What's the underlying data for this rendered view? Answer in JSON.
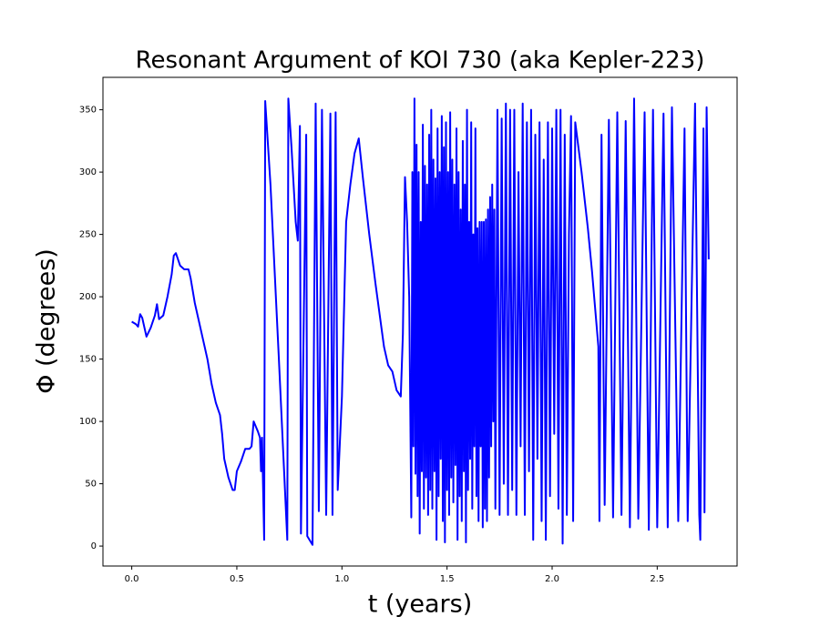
{
  "chart_data": {
    "type": "line",
    "title": "Resonant Argument of KOI 730 (aka Kepler-223)",
    "x_label": "t (years)",
    "y_label": "Φ (degrees)",
    "color": "#0000ff",
    "xlim": [
      -0.137,
      2.88
    ],
    "ylim": [
      -16,
      376
    ],
    "xticks": [
      {
        "value": 0,
        "label": "0.0"
      },
      0.5,
      {
        "value": 1,
        "label": "1.0"
      },
      1.5,
      {
        "value": 2,
        "label": "2.0"
      },
      2.5
    ],
    "yticks": [
      0,
      50,
      100,
      150,
      200,
      250,
      300,
      350
    ],
    "x": [
      0,
      0.02,
      0.03,
      0.04,
      0.05,
      0.07,
      0.09,
      0.11,
      0.12,
      0.13,
      0.15,
      0.17,
      0.19,
      0.2,
      0.21,
      0.23,
      0.25,
      0.27,
      0.28,
      0.3,
      0.32,
      0.34,
      0.36,
      0.38,
      0.4,
      0.42,
      0.43,
      0.44,
      0.46,
      0.48,
      0.49,
      0.5,
      0.52,
      0.54,
      0.56,
      0.57,
      0.58,
      0.6,
      0.61,
      0.615,
      0.62,
      0.63,
      0.635,
      0.66,
      0.7,
      0.74,
      0.745,
      0.76,
      0.78,
      0.79,
      0.8,
      0.805,
      0.83,
      0.835,
      0.86,
      0.875,
      0.89,
      0.905,
      0.925,
      0.945,
      0.955,
      0.97,
      0.98,
      1.0,
      1.02,
      1.04,
      1.06,
      1.08,
      1.1,
      1.13,
      1.16,
      1.2,
      1.22,
      1.24,
      1.26,
      1.28,
      1.29,
      1.3,
      1.31,
      1.32,
      1.33,
      1.335,
      1.34,
      1.345,
      1.35,
      1.355,
      1.36,
      1.365,
      1.37,
      1.375,
      1.38,
      1.385,
      1.39,
      1.395,
      1.4,
      1.405,
      1.41,
      1.415,
      1.42,
      1.425,
      1.43,
      1.435,
      1.44,
      1.445,
      1.45,
      1.455,
      1.46,
      1.465,
      1.47,
      1.475,
      1.48,
      1.485,
      1.49,
      1.495,
      1.5,
      1.505,
      1.51,
      1.515,
      1.52,
      1.525,
      1.53,
      1.535,
      1.54,
      1.545,
      1.55,
      1.555,
      1.56,
      1.565,
      1.57,
      1.575,
      1.58,
      1.585,
      1.59,
      1.595,
      1.6,
      1.605,
      1.61,
      1.615,
      1.62,
      1.625,
      1.63,
      1.635,
      1.64,
      1.645,
      1.65,
      1.655,
      1.66,
      1.665,
      1.67,
      1.675,
      1.68,
      1.685,
      1.69,
      1.695,
      1.7,
      1.705,
      1.71,
      1.715,
      1.72,
      1.725,
      1.73,
      1.74,
      1.75,
      1.76,
      1.77,
      1.78,
      1.79,
      1.8,
      1.81,
      1.82,
      1.83,
      1.84,
      1.85,
      1.86,
      1.87,
      1.88,
      1.89,
      1.9,
      1.91,
      1.92,
      1.93,
      1.94,
      1.95,
      1.96,
      1.97,
      1.98,
      1.99,
      2.0,
      2.01,
      2.02,
      2.03,
      2.04,
      2.05,
      2.06,
      2.07,
      2.08,
      2.09,
      2.1,
      2.11,
      2.14,
      2.17,
      2.19,
      2.21,
      2.22,
      2.225,
      2.235,
      2.25,
      2.27,
      2.29,
      2.31,
      2.33,
      2.35,
      2.37,
      2.39,
      2.41,
      2.44,
      2.46,
      2.48,
      2.5,
      2.53,
      2.55,
      2.57,
      2.6,
      2.63,
      2.645,
      2.68,
      2.7,
      2.705,
      2.72,
      2.725,
      2.735,
      2.745
    ],
    "values": [
      180,
      178,
      176,
      186,
      183,
      168,
      175,
      185,
      194,
      182,
      185,
      200,
      218,
      233,
      235,
      225,
      222,
      222,
      215,
      195,
      180,
      165,
      150,
      130,
      115,
      105,
      90,
      70,
      55,
      45,
      45,
      60,
      68,
      78,
      78,
      80,
      100,
      92,
      87,
      60,
      87,
      5,
      357,
      290,
      150,
      5,
      359,
      320,
      260,
      245,
      337,
      10,
      330,
      8,
      1,
      355,
      28,
      350,
      25,
      347,
      25,
      348,
      45,
      120,
      260,
      290,
      315,
      327,
      295,
      250,
      210,
      160,
      145,
      140,
      125,
      120,
      170,
      296,
      260,
      200,
      23,
      300,
      80,
      359,
      58,
      322,
      40,
      300,
      10,
      260,
      60,
      338,
      30,
      305,
      55,
      290,
      25,
      330,
      45,
      350,
      30,
      310,
      60,
      295,
      5,
      335,
      40,
      300,
      70,
      345,
      20,
      320,
      3,
      340,
      45,
      300,
      25,
      348,
      55,
      310,
      35,
      290,
      65,
      335,
      5,
      300,
      40,
      270,
      20,
      325,
      60,
      290,
      3,
      350,
      45,
      260,
      70,
      340,
      30,
      250,
      80,
      335,
      40,
      255,
      20,
      260,
      80,
      260,
      15,
      260,
      30,
      262,
      20,
      270,
      55,
      280,
      80,
      290,
      100,
      270,
      30,
      350,
      25,
      343,
      50,
      355,
      25,
      350,
      45,
      350,
      25,
      300,
      80,
      355,
      25,
      340,
      60,
      350,
      5,
      330,
      70,
      340,
      20,
      310,
      5,
      340,
      40,
      335,
      90,
      350,
      30,
      350,
      2,
      330,
      25,
      250,
      345,
      20,
      340,
      300,
      255,
      220,
      180,
      160,
      20,
      330,
      33,
      342,
      23,
      348,
      25,
      341,
      15,
      359,
      22,
      348,
      13,
      350,
      15,
      347,
      15,
      352,
      20,
      335,
      20,
      355,
      25,
      5,
      335,
      27,
      352,
      230
    ]
  }
}
